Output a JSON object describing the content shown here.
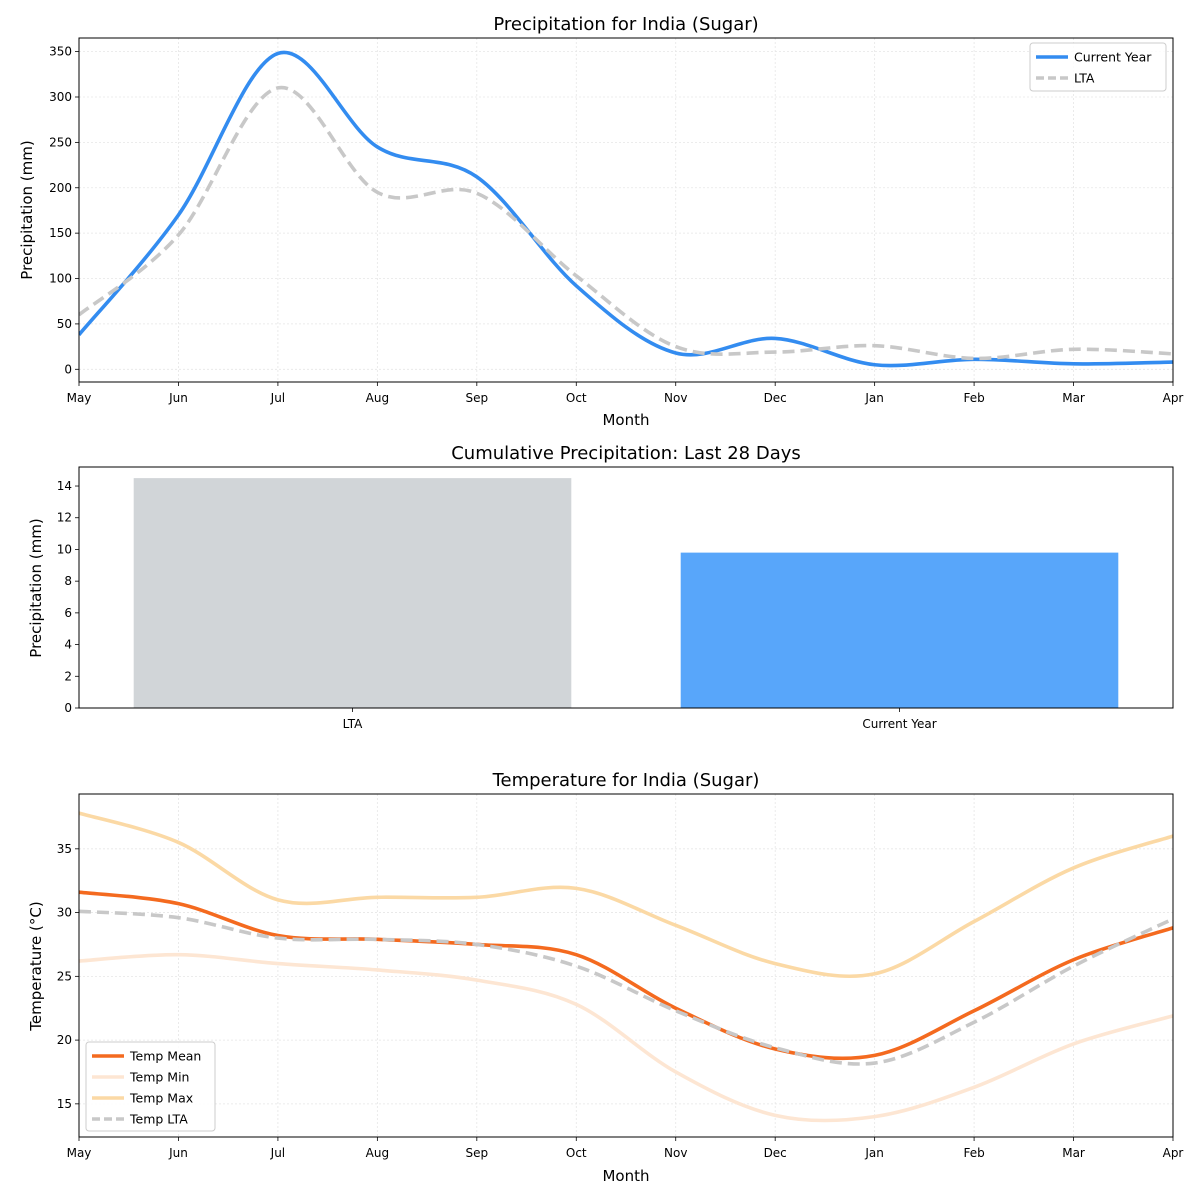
{
  "chart_data": [
    {
      "type": "line",
      "title": "Precipitation for India (Sugar)",
      "xlabel": "Month",
      "ylabel": "Precipitation (mm)",
      "categories": [
        "May",
        "Jun",
        "Jul",
        "Aug",
        "Sep",
        "Oct",
        "Nov",
        "Dec",
        "Jan",
        "Feb",
        "Mar",
        "Apr"
      ],
      "ylim": [
        -14,
        365
      ],
      "yticks": [
        0,
        50,
        100,
        150,
        200,
        250,
        300,
        350
      ],
      "legend_position": "top-right",
      "grid": true,
      "series": [
        {
          "name": "Current Year",
          "color": "#338cf0",
          "style": "solid",
          "values": [
            38,
            170,
            348,
            245,
            212,
            92,
            18,
            34,
            5,
            11,
            6,
            8
          ]
        },
        {
          "name": "LTA",
          "color": "#c8c8c8",
          "style": "dashed",
          "values": [
            60,
            148,
            310,
            195,
            194,
            103,
            25,
            19,
            26,
            12,
            22,
            17
          ]
        }
      ]
    },
    {
      "type": "bar",
      "title": "Cumulative Precipitation: Last 28 Days",
      "xlabel": "",
      "ylabel": "Precipitation (mm)",
      "categories": [
        "LTA",
        "Current Year"
      ],
      "values": [
        14.5,
        9.8
      ],
      "colors": [
        "#d1d5d8",
        "#58a6fa"
      ],
      "ylim": [
        0,
        15.2
      ],
      "yticks": [
        0,
        2,
        4,
        6,
        8,
        10,
        12,
        14
      ],
      "grid": false
    },
    {
      "type": "line",
      "title": "Temperature for India (Sugar)",
      "xlabel": "Month",
      "ylabel": "Temperature (°C)",
      "categories": [
        "May",
        "Jun",
        "Jul",
        "Aug",
        "Sep",
        "Oct",
        "Nov",
        "Dec",
        "Jan",
        "Feb",
        "Mar",
        "Apr"
      ],
      "ylim": [
        12.4,
        39.3
      ],
      "yticks": [
        15,
        20,
        25,
        30,
        35
      ],
      "legend_position": "bottom-left",
      "grid": true,
      "series": [
        {
          "name": "Temp Mean",
          "color": "#f46a1f",
          "style": "solid",
          "values": [
            31.6,
            30.7,
            28.2,
            27.9,
            27.5,
            26.7,
            22.5,
            19.3,
            18.8,
            22.3,
            26.3,
            28.8
          ]
        },
        {
          "name": "Temp Min",
          "color": "#fde6d3",
          "style": "solid",
          "values": [
            26.2,
            26.7,
            26.0,
            25.5,
            24.7,
            22.8,
            17.5,
            14.1,
            14.0,
            16.3,
            19.7,
            21.9
          ]
        },
        {
          "name": "Temp Max",
          "color": "#fbd9a5",
          "style": "solid",
          "values": [
            37.8,
            35.5,
            31.0,
            31.2,
            31.2,
            31.9,
            29.0,
            26.0,
            25.2,
            29.3,
            33.5,
            36.0
          ]
        },
        {
          "name": "Temp LTA",
          "color": "#c8c8c8",
          "style": "dashed",
          "values": [
            30.1,
            29.6,
            28.0,
            27.9,
            27.5,
            25.8,
            22.3,
            19.4,
            18.2,
            21.4,
            25.8,
            29.5
          ]
        }
      ]
    }
  ]
}
